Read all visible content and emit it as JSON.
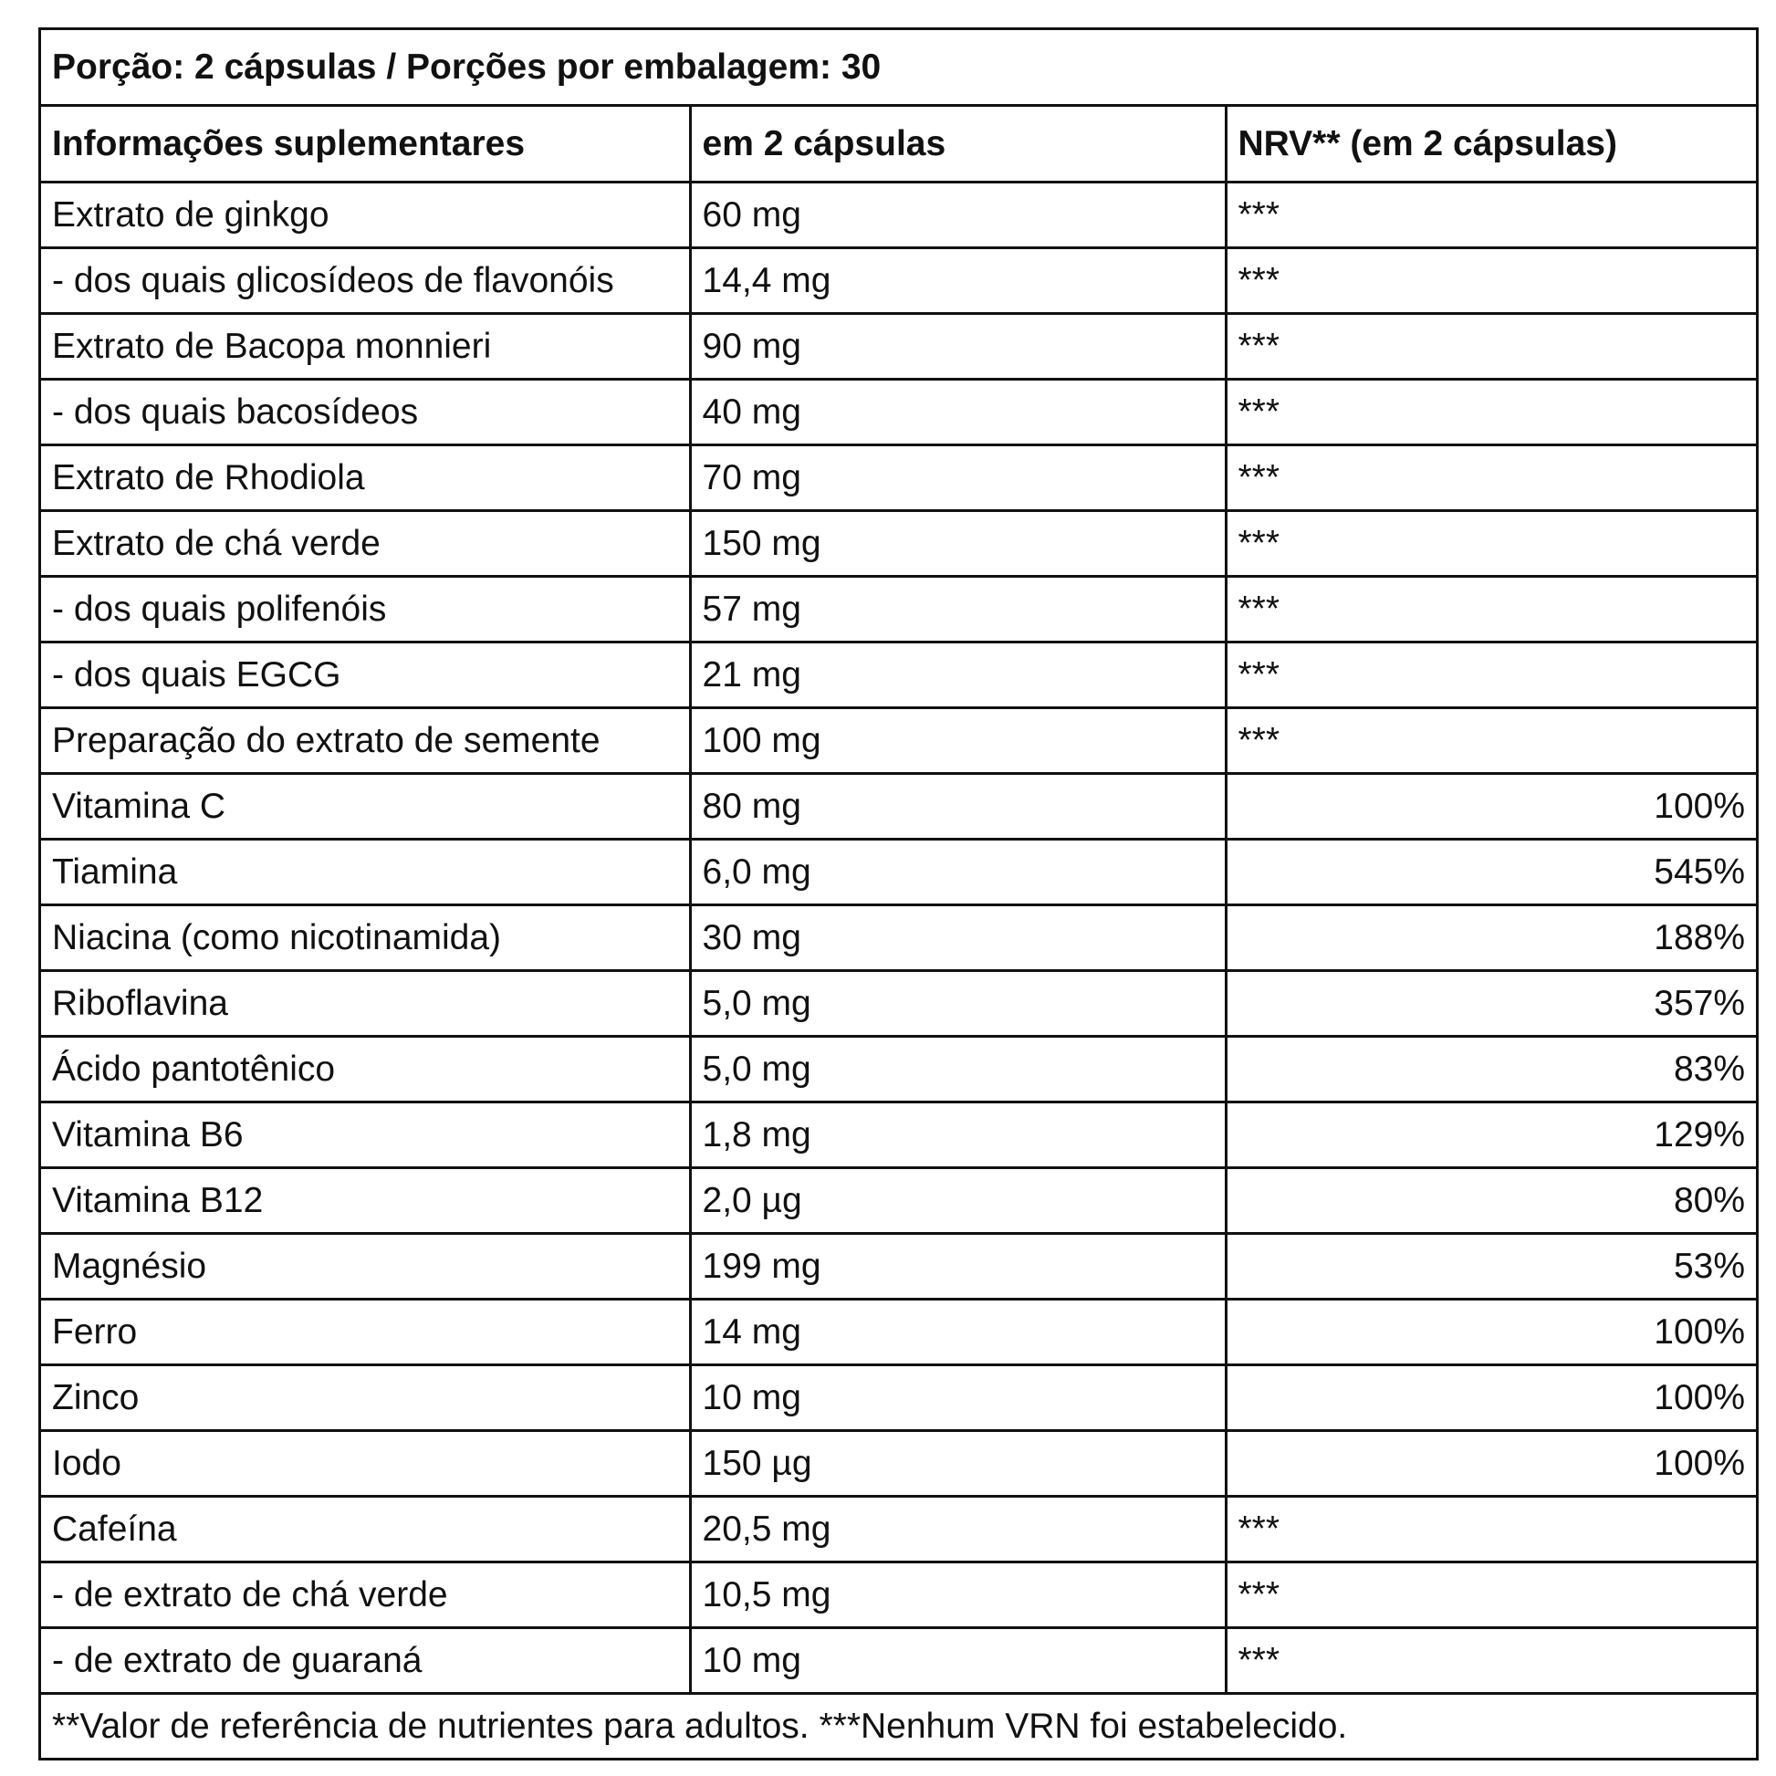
{
  "serving": "Porção: 2 cápsulas / Porções por embalagem: 30",
  "headers": {
    "name": "Informações suplementares",
    "amount": "em 2 cápsulas",
    "nrv": "NRV** (em 2 cápsulas)"
  },
  "rows": [
    {
      "name": "Extrato de ginkgo",
      "amount": "60 mg",
      "nrv": "***"
    },
    {
      "name": "- dos quais glicosídeos de flavonóis",
      "amount": "14,4 mg",
      "nrv": "***"
    },
    {
      "name": "Extrato de Bacopa monnieri",
      "amount": "90 mg",
      "nrv": "***"
    },
    {
      "name": "- dos quais bacosídeos",
      "amount": "40 mg",
      "nrv": "***"
    },
    {
      "name": "Extrato de Rhodiola",
      "amount": "70 mg",
      "nrv": "***"
    },
    {
      "name": "Extrato de chá verde",
      "amount": "150 mg",
      "nrv": "***"
    },
    {
      "name": "- dos quais polifenóis",
      "amount": "57 mg",
      "nrv": "***"
    },
    {
      "name": "- dos quais EGCG",
      "amount": "21 mg",
      "nrv": "***"
    },
    {
      "name": "Preparação do extrato de semente",
      "amount": "100 mg",
      "nrv": "***"
    },
    {
      "name": "Vitamina C",
      "amount": "80 mg",
      "nrv": "100%"
    },
    {
      "name": "Tiamina",
      "amount": "6,0 mg",
      "nrv": "545%"
    },
    {
      "name": "Niacina (como nicotinamida)",
      "amount": "30 mg",
      "nrv": "188%"
    },
    {
      "name": "Riboflavina",
      "amount": "5,0 mg",
      "nrv": "357%"
    },
    {
      "name": "Ácido pantotênico",
      "amount": "5,0 mg",
      "nrv": "83%"
    },
    {
      "name": "Vitamina B6",
      "amount": "1,8 mg",
      "nrv": "129%"
    },
    {
      "name": "Vitamina B12",
      "amount": "2,0 µg",
      "nrv": "80%"
    },
    {
      "name": "Magnésio",
      "amount": "199 mg",
      "nrv": "53%"
    },
    {
      "name": "Ferro",
      "amount": "14 mg",
      "nrv": "100%"
    },
    {
      "name": "Zinco",
      "amount": "10 mg",
      "nrv": "100%"
    },
    {
      "name": "Iodo",
      "amount": "150 µg",
      "nrv": "100%"
    },
    {
      "name": "Cafeína",
      "amount": "20,5 mg",
      "nrv": "***"
    },
    {
      "name": "- de extrato de chá verde",
      "amount": "10,5 mg",
      "nrv": "***"
    },
    {
      "name": "- de extrato de guaraná",
      "amount": "10 mg",
      "nrv": "***"
    }
  ],
  "footnote": "**Valor de referência de nutrientes para adultos. ***Nenhum VRN foi estabelecido."
}
